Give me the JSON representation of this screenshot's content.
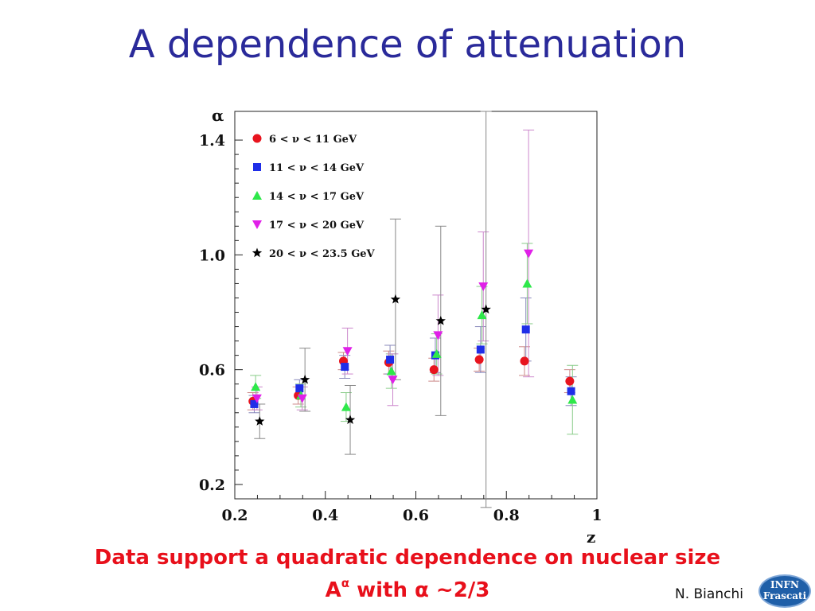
{
  "slide": {
    "title": "A dependence of attenuation",
    "caption_line1": "Data support a quadratic dependence on nuclear size",
    "caption_line2_a": "A",
    "caption_line2_sup": "α",
    "caption_line2_b": " with α ~2/3",
    "author": "N. Bianchi",
    "logo_line1": "INFN",
    "logo_line2": "Frascati"
  },
  "colors": {
    "title": "#2a2a9a",
    "caption": "#e8101b",
    "series": [
      "#e8141e",
      "#1f2ee8",
      "#2ee84a",
      "#e020e8",
      "#000000"
    ]
  },
  "chart_data": {
    "type": "scatter",
    "xlabel": "z",
    "ylabel": "α",
    "xlim": [
      0.2,
      1.0
    ],
    "ylim": [
      0.15,
      1.5
    ],
    "xticks": [
      0.2,
      0.4,
      0.6,
      0.8,
      1.0
    ],
    "xtick_labels": [
      "0.2",
      "0.4",
      "0.6",
      "0.8",
      "1"
    ],
    "yticks": [
      0.2,
      0.6,
      1.0,
      1.4
    ],
    "ytick_labels": [
      "0.2",
      "0.6",
      "1.0",
      "1.4"
    ],
    "grid": false,
    "legend_position": "top-left",
    "error_bars": true,
    "series": [
      {
        "name": "6 < ν < 11 GeV",
        "marker": "circle",
        "points": [
          {
            "x": 0.24,
            "y": 0.49,
            "err": 0.03
          },
          {
            "x": 0.34,
            "y": 0.51,
            "err": 0.03
          },
          {
            "x": 0.44,
            "y": 0.63,
            "err": 0.03
          },
          {
            "x": 0.54,
            "y": 0.625,
            "err": 0.04
          },
          {
            "x": 0.64,
            "y": 0.6,
            "err": 0.04
          },
          {
            "x": 0.74,
            "y": 0.635,
            "err": 0.04
          },
          {
            "x": 0.84,
            "y": 0.63,
            "err": 0.05
          },
          {
            "x": 0.94,
            "y": 0.56,
            "err": 0.04
          }
        ]
      },
      {
        "name": "11 < ν < 14 GeV",
        "marker": "square",
        "points": [
          {
            "x": 0.243,
            "y": 0.48,
            "err": 0.03
          },
          {
            "x": 0.343,
            "y": 0.535,
            "err": 0.03
          },
          {
            "x": 0.443,
            "y": 0.61,
            "err": 0.04
          },
          {
            "x": 0.543,
            "y": 0.635,
            "err": 0.05
          },
          {
            "x": 0.643,
            "y": 0.65,
            "err": 0.06
          },
          {
            "x": 0.743,
            "y": 0.67,
            "err": 0.08
          },
          {
            "x": 0.843,
            "y": 0.74,
            "err": 0.11
          },
          {
            "x": 0.943,
            "y": 0.525,
            "err": 0.05
          }
        ]
      },
      {
        "name": "14 < ν < 17 GeV",
        "marker": "triangle-up",
        "points": [
          {
            "x": 0.246,
            "y": 0.54,
            "err": 0.04
          },
          {
            "x": 0.346,
            "y": 0.51,
            "err": 0.04
          },
          {
            "x": 0.446,
            "y": 0.47,
            "err": 0.05
          },
          {
            "x": 0.546,
            "y": 0.595,
            "err": 0.06
          },
          {
            "x": 0.646,
            "y": 0.655,
            "err": 0.07
          },
          {
            "x": 0.746,
            "y": 0.79,
            "err": 0.1
          },
          {
            "x": 0.846,
            "y": 0.9,
            "err": 0.14
          },
          {
            "x": 0.946,
            "y": 0.495,
            "err": 0.12
          }
        ]
      },
      {
        "name": "17 < ν < 20 GeV",
        "marker": "triangle-down",
        "points": [
          {
            "x": 0.249,
            "y": 0.5,
            "err": 0.04
          },
          {
            "x": 0.349,
            "y": 0.5,
            "err": 0.04
          },
          {
            "x": 0.449,
            "y": 0.665,
            "err": 0.08
          },
          {
            "x": 0.549,
            "y": 0.565,
            "err": 0.09
          },
          {
            "x": 0.649,
            "y": 0.72,
            "err": 0.14
          },
          {
            "x": 0.749,
            "y": 0.89,
            "err": 0.19
          },
          {
            "x": 0.849,
            "y": 1.005,
            "err": 0.43
          }
        ]
      },
      {
        "name": "20 < ν < 23.5 GeV",
        "marker": "star",
        "points": [
          {
            "x": 0.255,
            "y": 0.42,
            "err": 0.06
          },
          {
            "x": 0.355,
            "y": 0.565,
            "err": 0.11
          },
          {
            "x": 0.455,
            "y": 0.425,
            "err": 0.12
          },
          {
            "x": 0.555,
            "y": 0.845,
            "err": 0.28
          },
          {
            "x": 0.655,
            "y": 0.77,
            "err": 0.33
          },
          {
            "x": 0.755,
            "y": 0.81,
            "err": 0.69
          }
        ]
      }
    ]
  }
}
